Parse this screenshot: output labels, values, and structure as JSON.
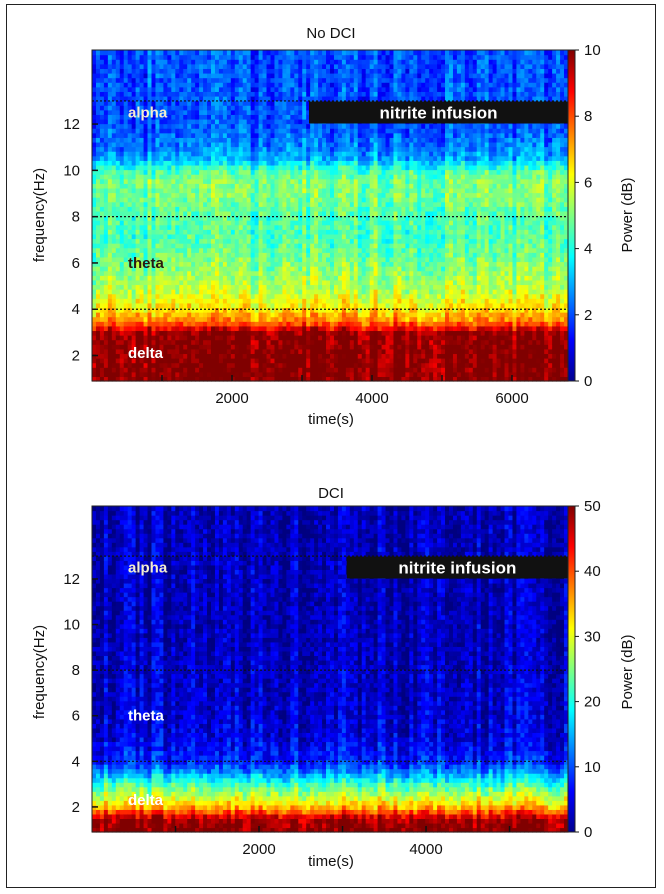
{
  "chart_data": [
    {
      "type": "heatmap",
      "title": "No DCI",
      "xlabel": "time(s)",
      "ylabel": "frequency(Hz)",
      "xlim": [
        0,
        6800
      ],
      "ylim": [
        0.9,
        15.2
      ],
      "x_ticks": [
        2000,
        4000,
        6000
      ],
      "y_ticks": [
        2,
        4,
        6,
        8,
        10,
        12
      ],
      "colorbar": {
        "label": "Power (dB)",
        "min": 0,
        "max": 10,
        "ticks": [
          0,
          2,
          4,
          6,
          8,
          10
        ]
      },
      "band_lines_hz": [
        4,
        8,
        13
      ],
      "bands": [
        {
          "name": "alpha",
          "freq": 12.5,
          "color": "#f3ecd0"
        },
        {
          "name": "theta",
          "freq": 6.0,
          "color": "#2a1a10"
        },
        {
          "name": "delta",
          "freq": 2.1,
          "color": "#ffffff"
        }
      ],
      "annotation": {
        "text": "nitrite infusion",
        "start": 3100,
        "end": 6800
      },
      "power_profile": {
        "freq_hz": [
          1,
          2,
          3,
          3.5,
          4,
          4.5,
          5,
          6,
          7,
          8,
          9,
          9.5,
          10,
          10.5,
          11,
          12,
          13,
          15
        ],
        "dB": [
          10,
          10,
          9.8,
          7.5,
          6.5,
          6,
          5.5,
          5,
          4.5,
          4.5,
          5,
          5,
          4.5,
          3,
          2.5,
          2,
          2,
          2
        ]
      }
    },
    {
      "type": "heatmap",
      "title": "DCI",
      "xlabel": "time(s)",
      "ylabel": "frequency(Hz)",
      "xlim": [
        0,
        5700
      ],
      "ylim": [
        0.9,
        15.2
      ],
      "x_ticks": [
        2000,
        4000
      ],
      "y_ticks": [
        2,
        4,
        6,
        8,
        10,
        12
      ],
      "colorbar": {
        "label": "Power (dB)",
        "min": 0,
        "max": 50,
        "ticks": [
          0,
          10,
          20,
          30,
          40,
          50
        ]
      },
      "band_lines_hz": [
        4,
        8,
        13
      ],
      "bands": [
        {
          "name": "alpha",
          "freq": 12.5,
          "color": "#f3ecd0"
        },
        {
          "name": "theta",
          "freq": 6.0,
          "color": "#ffffff"
        },
        {
          "name": "delta",
          "freq": 2.3,
          "color": "#ffffff"
        }
      ],
      "annotation": {
        "text": "nitrite infusion",
        "start": 3050,
        "end": 5700
      },
      "power_profile": {
        "freq_hz": [
          1,
          1.5,
          2,
          2.5,
          3,
          3.5,
          4,
          5,
          6,
          8,
          10,
          13,
          15
        ],
        "dB": [
          50,
          48,
          35,
          28,
          22,
          14,
          8,
          5,
          4,
          3.5,
          3,
          3,
          3
        ]
      }
    }
  ]
}
